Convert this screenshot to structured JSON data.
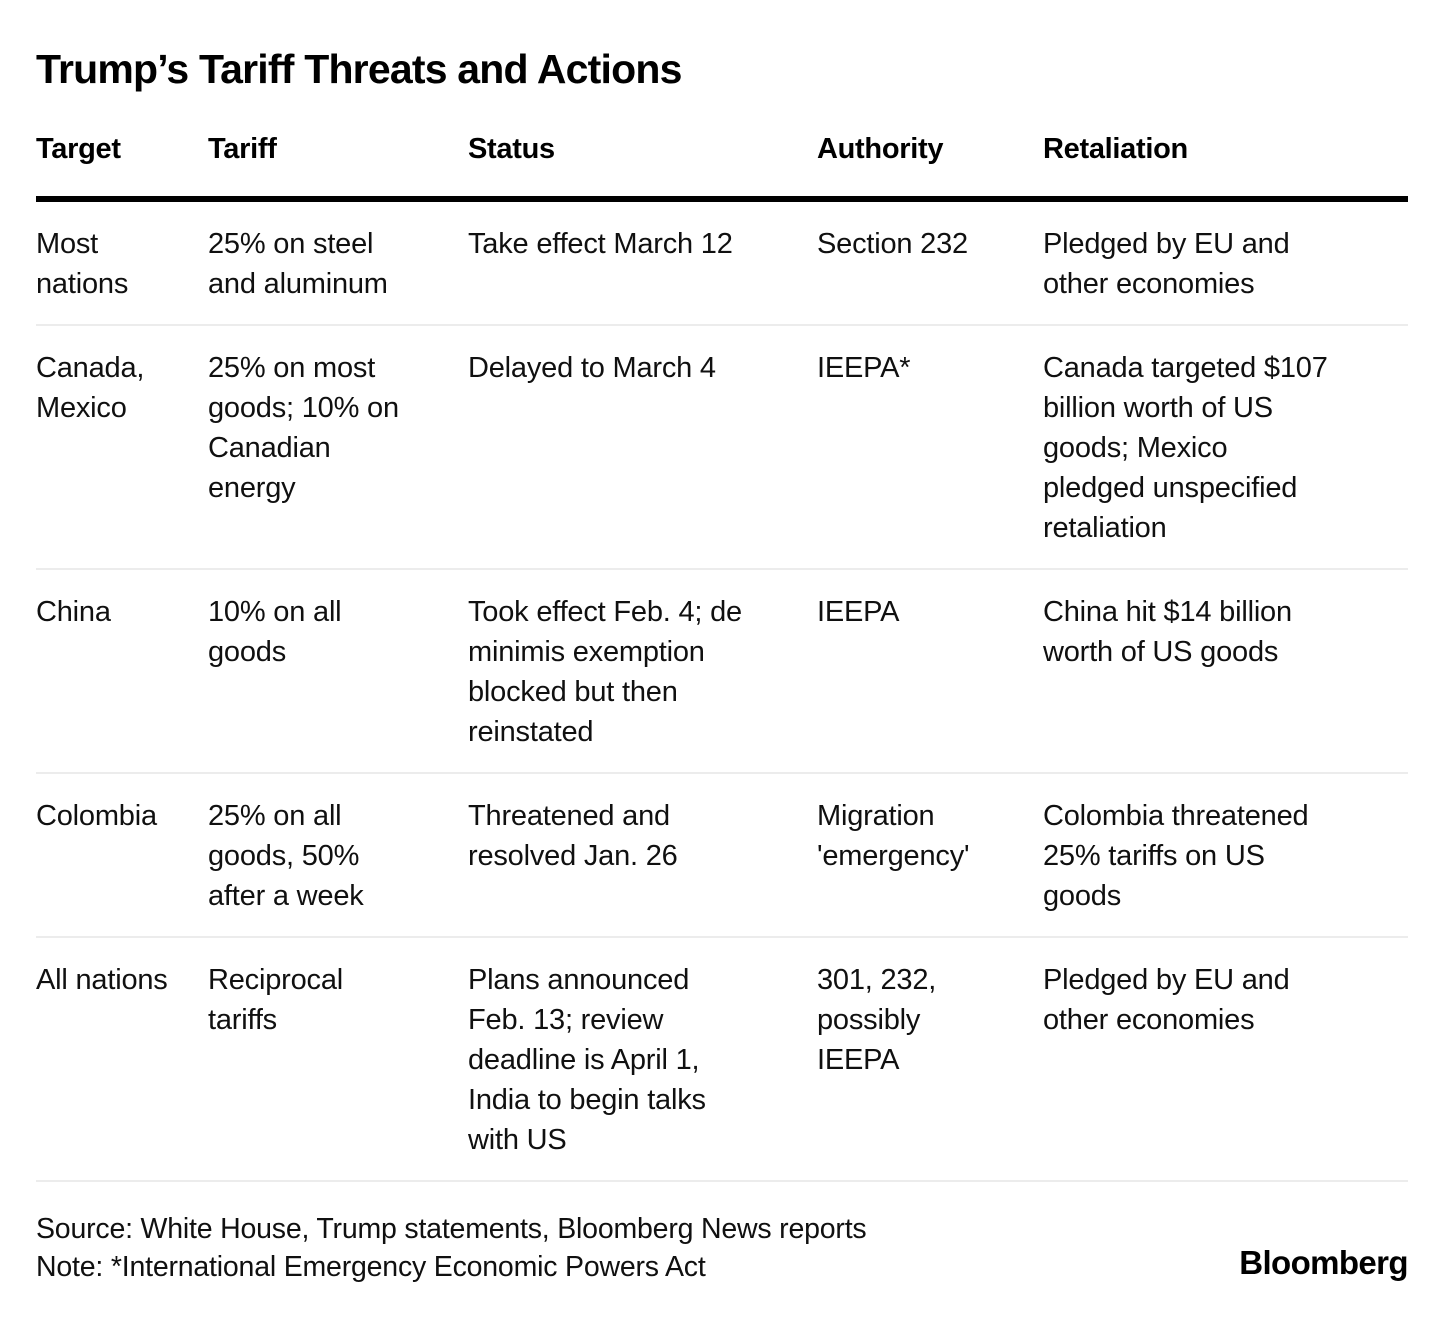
{
  "title": "Trump’s Tariff Threats and Actions",
  "table": {
    "columns": [
      "Target",
      "Tariff",
      "Status",
      "Authority",
      "Retaliation"
    ],
    "rows": [
      {
        "target": "Most\nnations",
        "tariff": "25% on steel\nand aluminum",
        "status": "Take effect March 12",
        "authority": "Section 232",
        "retaliation": "Pledged by EU and\nother economies"
      },
      {
        "target": "Canada,\nMexico",
        "tariff": "25% on most\ngoods; 10% on\nCanadian\nenergy",
        "status": "Delayed to March 4",
        "authority": "IEEPA*",
        "retaliation": "Canada targeted $107\nbillion worth of US\ngoods; Mexico\npledged unspecified\nretaliation"
      },
      {
        "target": "China",
        "tariff": "10% on all\ngoods",
        "status": "Took effect Feb. 4; de\nminimis exemption\nblocked but then\nreinstated",
        "authority": "IEEPA",
        "retaliation": "China hit $14 billion\nworth of US goods"
      },
      {
        "target": "Colombia",
        "tariff": "25% on all\ngoods, 50%\nafter a week",
        "status": "Threatened and\nresolved Jan. 26",
        "authority": "Migration\n'emergency'",
        "retaliation": "Colombia threatened\n25% tariffs on US\ngoods"
      },
      {
        "target": "All nations",
        "tariff": "Reciprocal\ntariffs",
        "status": "Plans announced\nFeb. 13; review\ndeadline is April 1,\nIndia to begin talks\nwith US",
        "authority": "301, 232,\npossibly\nIEEPA",
        "retaliation": "Pledged by EU and\nother economies"
      }
    ]
  },
  "footer": {
    "source": "Source: White House, Trump statements, Bloomberg News reports",
    "note": "Note: *International Emergency Economic Powers Act",
    "brand": "Bloomberg"
  },
  "colors": {
    "text": "#101010",
    "heavy_rule": "#000000",
    "light_rule": "#ececec",
    "background": "#ffffff"
  },
  "chart_data": {
    "type": "table",
    "title": "Trump’s Tariff Threats and Actions",
    "columns": [
      "Target",
      "Tariff",
      "Status",
      "Authority",
      "Retaliation"
    ],
    "rows": [
      [
        "Most nations",
        "25% on steel and aluminum",
        "Take effect March 12",
        "Section 232",
        "Pledged by EU and other economies"
      ],
      [
        "Canada, Mexico",
        "25% on most goods; 10% on Canadian energy",
        "Delayed to March 4",
        "IEEPA*",
        "Canada targeted $107 billion worth of US goods; Mexico pledged unspecified retaliation"
      ],
      [
        "China",
        "10% on all goods",
        "Took effect Feb. 4; de minimis exemption blocked but then reinstated",
        "IEEPA",
        "China hit $14 billion worth of US goods"
      ],
      [
        "Colombia",
        "25% on all goods, 50% after a week",
        "Threatened and resolved Jan. 26",
        "Migration 'emergency'",
        "Colombia threatened 25% tariffs on US goods"
      ],
      [
        "All nations",
        "Reciprocal tariffs",
        "Plans announced Feb. 13; review deadline is April 1, India to begin talks with US",
        "301, 232, possibly IEEPA",
        "Pledged by EU and other economies"
      ]
    ],
    "source": "White House, Trump statements, Bloomberg News reports",
    "note": "*International Emergency Economic Powers Act"
  }
}
